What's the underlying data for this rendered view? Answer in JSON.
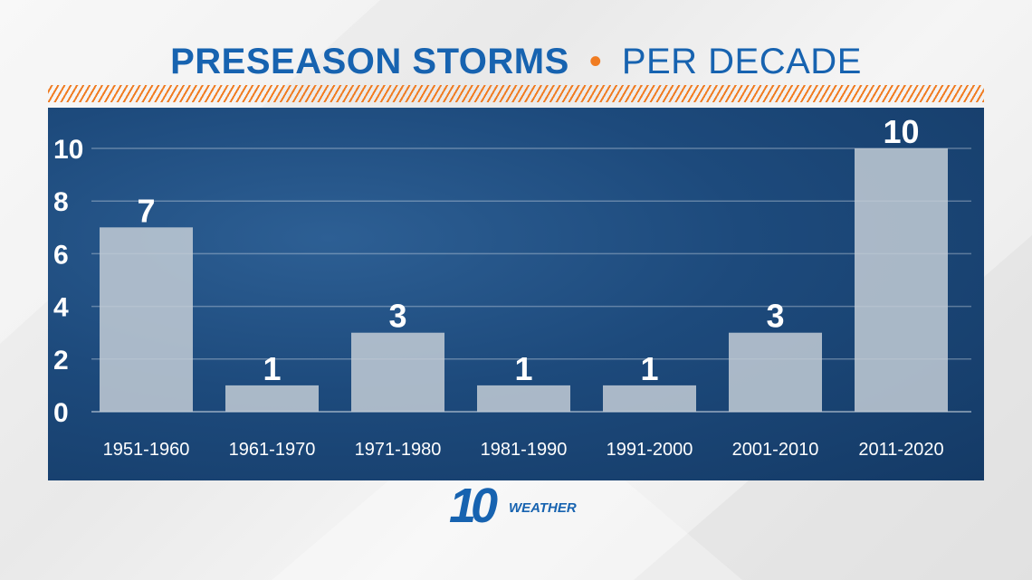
{
  "title": {
    "main": "PRESEASON STORMS",
    "separator": "•",
    "sub": "PER DECADE"
  },
  "logo": {
    "number": "10",
    "word": "WEATHER"
  },
  "colors": {
    "title": "#1763b0",
    "accent": "#f07c22",
    "panel": "#1d4a7c",
    "bar": "#c3ccd6"
  },
  "chart_data": {
    "type": "bar",
    "title": "PRESEASON STORMS • PER DECADE",
    "xlabel": "",
    "ylabel": "",
    "categories": [
      "1951-1960",
      "1961-1970",
      "1971-1980",
      "1981-1990",
      "1991-2000",
      "2001-2010",
      "2011-2020"
    ],
    "values": [
      7,
      1,
      3,
      1,
      1,
      3,
      10
    ],
    "ylim": [
      0,
      10
    ],
    "yticks": [
      0,
      2,
      4,
      6,
      8,
      10
    ],
    "grid": true,
    "legend": "none",
    "data_labels": true
  }
}
